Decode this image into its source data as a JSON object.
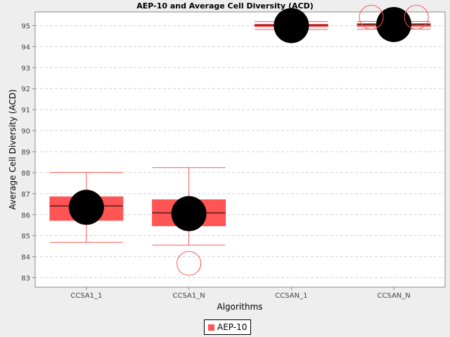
{
  "chart_data": {
    "type": "box",
    "title": "AEP-10 and Average Cell Diversity (ACD)",
    "xlabel": "Algorithms",
    "ylabel": "Average Cell Diversity (ACD)",
    "ylim": [
      82.55,
      95.65
    ],
    "yticks": [
      83,
      84,
      85,
      86,
      87,
      88,
      89,
      90,
      91,
      92,
      93,
      94,
      95
    ],
    "grid": true,
    "legend_position": "bottom-center",
    "categories": [
      "CCSA1_1",
      "CCSA1_N",
      "CCSAN_1",
      "CCSAN_N"
    ],
    "series": [
      {
        "name": "AEP-10",
        "color": "#ff5555",
        "boxes": [
          {
            "category": "CCSA1_1",
            "min": 84.68,
            "q1": 85.73,
            "median": 86.42,
            "q3": 86.85,
            "max": 88.01,
            "mean": 86.35,
            "outliers": []
          },
          {
            "category": "CCSA1_N",
            "min": 84.55,
            "q1": 85.47,
            "median": 86.09,
            "q3": 86.71,
            "max": 88.24,
            "mean": 86.05,
            "outliers": [
              83.68
            ]
          },
          {
            "category": "CCSAN_1",
            "min": 94.82,
            "q1": 94.95,
            "median": 95.02,
            "q3": 95.06,
            "max": 95.19,
            "mean": 95.0,
            "outliers": []
          },
          {
            "category": "CCSAN_N",
            "min": 94.83,
            "q1": 94.96,
            "median": 95.05,
            "q3": 95.1,
            "max": 95.2,
            "mean": 95.05,
            "outliers": [
              95.4,
              95.4
            ]
          }
        ]
      }
    ]
  },
  "legend": {
    "label": "AEP-10"
  }
}
